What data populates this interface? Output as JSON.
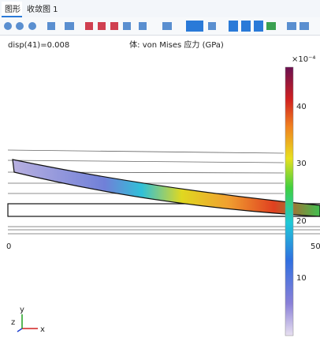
{
  "tabs": [
    "图形",
    "收敛图 1"
  ],
  "plot": {
    "left_label": "disp(41)=0.008",
    "title": "体: von Mises 应力 (GPa)",
    "axis_labels": [
      "0",
      "50"
    ],
    "colorbar": {
      "unit_label": "×10⁻⁴",
      "ticks": [
        "10",
        "20",
        "30",
        "40"
      ]
    },
    "triad": [
      "x",
      "y",
      "z"
    ]
  }
}
